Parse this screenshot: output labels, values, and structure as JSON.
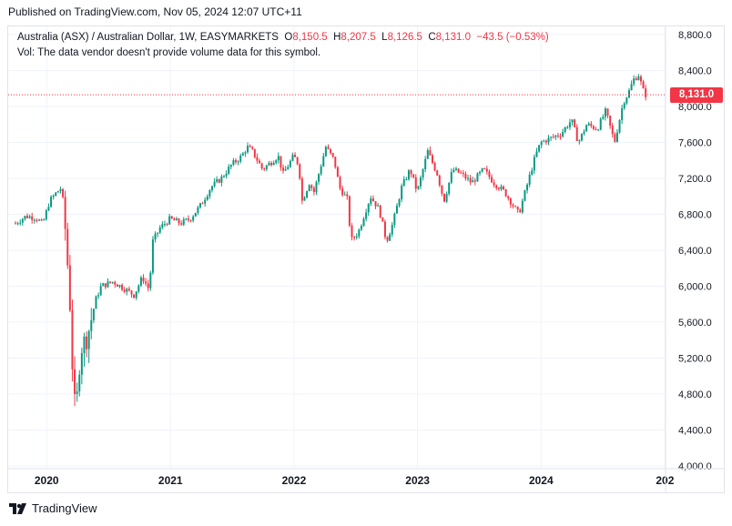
{
  "header": {
    "published": "Published on TradingView.com, Nov 05, 2024 12:07 UTC+11"
  },
  "legend": {
    "symbol": "Australia (ASX) / Australian Dollar, 1W, EASYMARKETS",
    "open_label": "O",
    "open": "8,150.5",
    "high_label": "H",
    "high": "8,207.5",
    "low_label": "L",
    "low": "8,126.5",
    "close_label": "C",
    "close": "8,131.0",
    "change": "−43.5 (−0.53%)",
    "volume_note": "Vol: The data vendor doesn't provide volume data for this symbol."
  },
  "last_price_tag": "8,131.0",
  "brand": {
    "name": "TradingView",
    "logo_icon": "tradingview-logo-icon"
  },
  "colors": {
    "up": "#089981",
    "down": "#f23645",
    "grid": "#f0f3fa",
    "text": "#131722"
  },
  "chart_data": {
    "type": "candlestick",
    "interval": "1W",
    "y_ticks": [
      "8,800.0",
      "8,400.0",
      "8,000.0",
      "7,600.0",
      "7,200.0",
      "6,800.0",
      "6,400.0",
      "6,000.0",
      "5,600.0",
      "5,200.0",
      "4,800.0",
      "4,400.0",
      "4,000.0"
    ],
    "x_ticks": [
      "2020",
      "2021",
      "2022",
      "2023",
      "2024",
      "202"
    ],
    "ylim": [
      4000,
      8800
    ],
    "xlim": [
      "2019-10-01",
      "2024-12-31"
    ],
    "last_price": 8131.0,
    "grid": true,
    "close_path": [
      [
        "2019-10-01",
        6700
      ],
      [
        "2019-11-01",
        6780
      ],
      [
        "2019-12-01",
        6760
      ],
      [
        "2019-12-20",
        6690
      ],
      [
        "2020-01-10",
        6950
      ],
      [
        "2020-02-01",
        7050
      ],
      [
        "2020-02-15",
        7100
      ],
      [
        "2020-02-28",
        6500
      ],
      [
        "2020-03-10",
        5800
      ],
      [
        "2020-03-20",
        4850
      ],
      [
        "2020-03-27",
        4550
      ],
      [
        "2020-04-10",
        5300
      ],
      [
        "2020-05-01",
        5450
      ],
      [
        "2020-05-25",
        5850
      ],
      [
        "2020-06-10",
        6000
      ],
      [
        "2020-07-15",
        6050
      ],
      [
        "2020-08-15",
        5980
      ],
      [
        "2020-09-15",
        5900
      ],
      [
        "2020-10-10",
        6100
      ],
      [
        "2020-10-30",
        5960
      ],
      [
        "2020-11-10",
        6500
      ],
      [
        "2020-12-01",
        6650
      ],
      [
        "2020-12-31",
        6750
      ],
      [
        "2021-01-31",
        6700
      ],
      [
        "2021-02-28",
        6750
      ],
      [
        "2021-03-31",
        6900
      ],
      [
        "2021-04-30",
        7100
      ],
      [
        "2021-05-31",
        7200
      ],
      [
        "2021-06-30",
        7350
      ],
      [
        "2021-07-31",
        7450
      ],
      [
        "2021-08-15",
        7550
      ],
      [
        "2021-08-31",
        7500
      ],
      [
        "2021-09-30",
        7300
      ],
      [
        "2021-10-31",
        7400
      ],
      [
        "2021-11-15",
        7450
      ],
      [
        "2021-11-30",
        7250
      ],
      [
        "2021-12-31",
        7450
      ],
      [
        "2022-01-15",
        7350
      ],
      [
        "2022-01-25",
        6950
      ],
      [
        "2022-02-15",
        7150
      ],
      [
        "2022-03-01",
        7050
      ],
      [
        "2022-04-05",
        7550
      ],
      [
        "2022-04-30",
        7400
      ],
      [
        "2022-05-15",
        7100
      ],
      [
        "2022-06-10",
        6950
      ],
      [
        "2022-06-17",
        6500
      ],
      [
        "2022-07-10",
        6600
      ],
      [
        "2022-08-15",
        7000
      ],
      [
        "2022-09-10",
        6850
      ],
      [
        "2022-10-01",
        6500
      ],
      [
        "2022-10-20",
        6700
      ],
      [
        "2022-11-15",
        7100
      ],
      [
        "2022-12-10",
        7300
      ],
      [
        "2022-12-31",
        7050
      ],
      [
        "2023-01-31",
        7500
      ],
      [
        "2023-02-28",
        7250
      ],
      [
        "2023-03-20",
        6950
      ],
      [
        "2023-04-15",
        7300
      ],
      [
        "2023-05-10",
        7250
      ],
      [
        "2023-06-10",
        7150
      ],
      [
        "2023-07-15",
        7300
      ],
      [
        "2023-08-15",
        7150
      ],
      [
        "2023-09-15",
        7050
      ],
      [
        "2023-10-27",
        6800
      ],
      [
        "2023-11-15",
        7050
      ],
      [
        "2023-12-15",
        7450
      ],
      [
        "2023-12-31",
        7600
      ],
      [
        "2024-01-31",
        7650
      ],
      [
        "2024-02-29",
        7700
      ],
      [
        "2024-03-31",
        7850
      ],
      [
        "2024-04-20",
        7600
      ],
      [
        "2024-05-15",
        7800
      ],
      [
        "2024-06-15",
        7750
      ],
      [
        "2024-07-10",
        7950
      ],
      [
        "2024-08-05",
        7600
      ],
      [
        "2024-08-31",
        8050
      ],
      [
        "2024-09-15",
        8150
      ],
      [
        "2024-09-30",
        8300
      ],
      [
        "2024-10-15",
        8350
      ],
      [
        "2024-10-31",
        8150
      ],
      [
        "2024-11-05",
        8131
      ]
    ]
  }
}
